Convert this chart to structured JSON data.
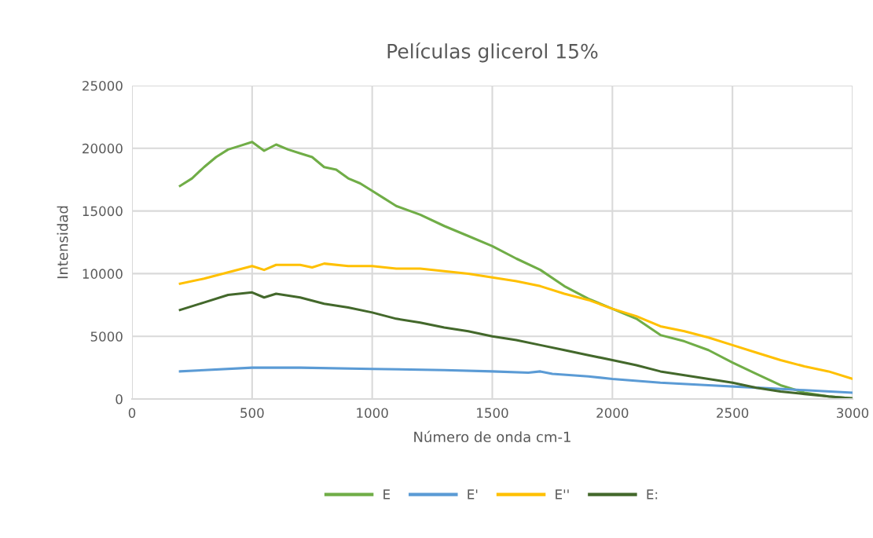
{
  "chart_data": {
    "type": "line",
    "title": "Películas glicerol 15%",
    "xlabel": "Número de onda cm-1",
    "ylabel": "Intensidad",
    "xlim": [
      0,
      3000
    ],
    "xticks": [
      0,
      500,
      1000,
      1500,
      2000,
      2500,
      3000
    ],
    "ylim": [
      0,
      25000
    ],
    "yticks": [
      0,
      5000,
      10000,
      15000,
      20000,
      25000
    ],
    "grid": true,
    "legend": "bottom",
    "marker": "none",
    "line_style": "solid",
    "series": [
      {
        "name": "E",
        "color": "#70ad47",
        "x": [
          200,
          250,
          300,
          350,
          400,
          450,
          500,
          550,
          600,
          650,
          700,
          750,
          800,
          850,
          900,
          950,
          1000,
          1050,
          1100,
          1200,
          1300,
          1400,
          1500,
          1600,
          1700,
          1800,
          1900,
          2000,
          2100,
          2200,
          2300,
          2400,
          2500,
          2600,
          2700,
          2800,
          2900,
          3000
        ],
        "values": [
          17000,
          17600,
          18500,
          19300,
          19900,
          20200,
          20500,
          19800,
          20300,
          19900,
          19600,
          19300,
          18500,
          18300,
          17600,
          17200,
          16600,
          16000,
          15400,
          14700,
          13800,
          13000,
          12200,
          11200,
          10300,
          9000,
          8000,
          7200,
          6400,
          5100,
          4600,
          3900,
          2900,
          2000,
          1100,
          500,
          200,
          50
        ]
      },
      {
        "name": "E'",
        "color": "#5b9bd5",
        "x": [
          200,
          300,
          500,
          700,
          1000,
          1300,
          1500,
          1650,
          1700,
          1750,
          1900,
          2000,
          2200,
          2400,
          2600,
          2800,
          3000
        ],
        "values": [
          2200,
          2300,
          2500,
          2500,
          2400,
          2300,
          2200,
          2100,
          2200,
          2000,
          1800,
          1600,
          1300,
          1100,
          900,
          700,
          500
        ]
      },
      {
        "name": "E''",
        "color": "#ffc000",
        "x": [
          200,
          300,
          400,
          500,
          550,
          600,
          700,
          750,
          800,
          900,
          1000,
          1100,
          1200,
          1300,
          1400,
          1500,
          1600,
          1700,
          1800,
          1900,
          2000,
          2100,
          2200,
          2300,
          2400,
          2500,
          2600,
          2700,
          2800,
          2900,
          3000
        ],
        "values": [
          9200,
          9600,
          10100,
          10600,
          10300,
          10700,
          10700,
          10500,
          10800,
          10600,
          10600,
          10400,
          10400,
          10200,
          10000,
          9700,
          9400,
          9000,
          8400,
          7900,
          7200,
          6600,
          5800,
          5400,
          4900,
          4300,
          3700,
          3100,
          2600,
          2200,
          1600
        ]
      },
      {
        "name": "E:",
        "color": "#43682b",
        "x": [
          200,
          300,
          400,
          500,
          550,
          600,
          700,
          800,
          900,
          1000,
          1100,
          1200,
          1300,
          1400,
          1500,
          1600,
          1700,
          1800,
          1900,
          2000,
          2100,
          2200,
          2300,
          2400,
          2500,
          2600,
          2700,
          2800,
          2900,
          3000
        ],
        "values": [
          7100,
          7700,
          8300,
          8500,
          8100,
          8400,
          8100,
          7600,
          7300,
          6900,
          6400,
          6100,
          5700,
          5400,
          5000,
          4700,
          4300,
          3900,
          3500,
          3100,
          2700,
          2200,
          1900,
          1600,
          1300,
          900,
          600,
          400,
          200,
          50
        ]
      }
    ]
  }
}
